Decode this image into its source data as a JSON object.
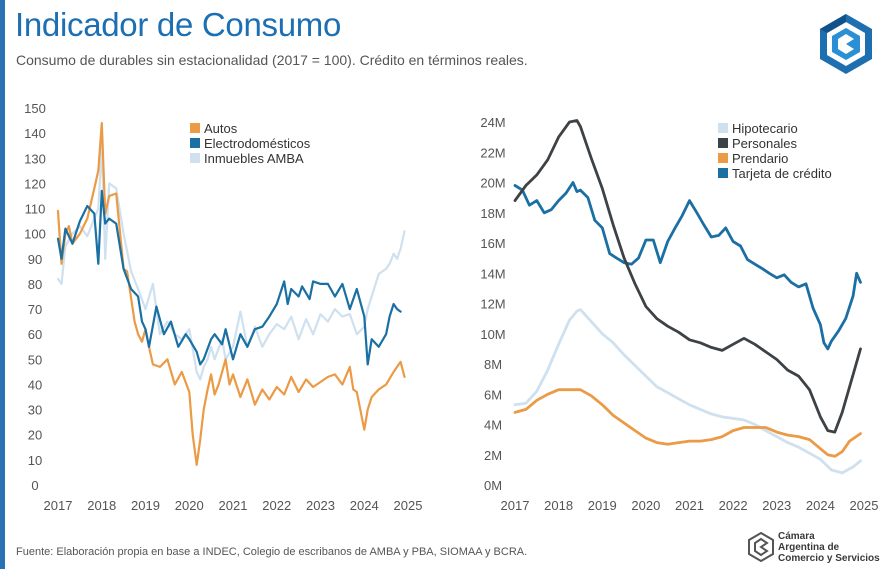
{
  "header": {
    "title": "Indicador de Consumo",
    "subtitle": "Consumo de durables sin estacionalidad (2017 = 100). Crédito en términos reales."
  },
  "footer": {
    "source": "Fuente: Elaboración propia en base a INDEC, Colegio de escribanos de AMBA y PBA, SIOMAA y BCRA.",
    "brand_lines": [
      "Cámara",
      "Argentina de",
      "Comercio y Servicios"
    ]
  },
  "colors": {
    "accent": "#1c6fb3",
    "autos": "#eb9a45",
    "electro": "#1a6fa3",
    "inmuebles": "#cfe0ef",
    "hipotecario": "#cfe0ef",
    "personales": "#3d4246",
    "prendario": "#eb9a45",
    "tarjeta": "#1a6fa3"
  },
  "chart_data": [
    {
      "type": "line",
      "title": "",
      "xlabel": "",
      "ylabel": "",
      "xlim": [
        2017,
        2025
      ],
      "ylim": [
        0,
        150
      ],
      "x_ticks": [
        "2017",
        "2018",
        "2019",
        "2020",
        "2021",
        "2022",
        "2023",
        "2024",
        "2025"
      ],
      "y_ticks": [
        "0",
        "10",
        "20",
        "30",
        "40",
        "50",
        "60",
        "70",
        "80",
        "90",
        "100",
        "110",
        "120",
        "130",
        "140",
        "150"
      ],
      "legend_position": "top-right",
      "series": [
        {
          "name": "Autos",
          "x": [
            2017.0,
            2017.08,
            2017.17,
            2017.25,
            2017.33,
            2017.5,
            2017.67,
            2017.83,
            2017.92,
            2018.0,
            2018.08,
            2018.17,
            2018.33,
            2018.5,
            2018.58,
            2018.75,
            2018.83,
            2018.92,
            2019.0,
            2019.08,
            2019.17,
            2019.33,
            2019.5,
            2019.67,
            2019.83,
            2020.0,
            2020.08,
            2020.17,
            2020.25,
            2020.33,
            2020.42,
            2020.5,
            2020.58,
            2020.67,
            2020.75,
            2020.83,
            2020.92,
            2021.0,
            2021.17,
            2021.33,
            2021.5,
            2021.67,
            2021.83,
            2022.0,
            2022.17,
            2022.33,
            2022.5,
            2022.67,
            2022.83,
            2023.0,
            2023.17,
            2023.33,
            2023.5,
            2023.67,
            2023.75,
            2023.83,
            2024.0,
            2024.08,
            2024.17,
            2024.33,
            2024.5,
            2024.67,
            2024.83,
            2024.92
          ],
          "values": [
            109,
            88,
            100,
            103,
            96,
            100,
            106,
            118,
            125,
            144,
            108,
            115,
            116,
            86,
            85,
            65,
            60,
            57,
            62,
            55,
            48,
            47,
            50,
            40,
            45,
            37,
            20,
            8,
            18,
            30,
            38,
            44,
            36,
            40,
            45,
            50,
            40,
            44,
            35,
            42,
            32,
            38,
            34,
            39,
            36,
            43,
            37,
            42,
            39,
            41,
            43,
            44,
            40,
            47,
            38,
            37,
            22,
            30,
            35,
            38,
            40,
            45,
            49,
            43
          ]
        },
        {
          "name": "Electrodomésticos",
          "x": [
            2017.0,
            2017.08,
            2017.17,
            2017.33,
            2017.5,
            2017.67,
            2017.83,
            2017.92,
            2018.0,
            2018.08,
            2018.17,
            2018.33,
            2018.5,
            2018.67,
            2018.83,
            2018.92,
            2019.0,
            2019.08,
            2019.25,
            2019.42,
            2019.58,
            2019.75,
            2019.92,
            2020.0,
            2020.17,
            2020.25,
            2020.33,
            2020.5,
            2020.58,
            2020.75,
            2020.83,
            2021.0,
            2021.17,
            2021.33,
            2021.5,
            2021.67,
            2021.83,
            2022.0,
            2022.17,
            2022.25,
            2022.33,
            2022.5,
            2022.58,
            2022.75,
            2022.83,
            2023.0,
            2023.17,
            2023.33,
            2023.5,
            2023.67,
            2023.83,
            2024.0,
            2024.08,
            2024.17,
            2024.33,
            2024.5,
            2024.58,
            2024.67,
            2024.75,
            2024.83
          ],
          "values": [
            98,
            90,
            102,
            96,
            105,
            111,
            108,
            88,
            117,
            104,
            106,
            104,
            86,
            78,
            75,
            65,
            62,
            55,
            71,
            60,
            65,
            55,
            60,
            58,
            53,
            48,
            50,
            58,
            60,
            56,
            62,
            50,
            60,
            55,
            62,
            63,
            67,
            72,
            81,
            72,
            78,
            75,
            79,
            74,
            81,
            80,
            80,
            75,
            80,
            70,
            78,
            67,
            48,
            58,
            55,
            60,
            67,
            72,
            70,
            69
          ]
        },
        {
          "name": "Inmuebles AMBA",
          "x": [
            2017.0,
            2017.08,
            2017.17,
            2017.33,
            2017.5,
            2017.67,
            2017.83,
            2017.92,
            2018.0,
            2018.08,
            2018.17,
            2018.33,
            2018.5,
            2018.67,
            2018.83,
            2019.0,
            2019.17,
            2019.33,
            2019.5,
            2019.67,
            2019.83,
            2020.0,
            2020.17,
            2020.25,
            2020.33,
            2020.42,
            2020.5,
            2020.58,
            2020.75,
            2020.83,
            2021.0,
            2021.17,
            2021.33,
            2021.5,
            2021.67,
            2021.83,
            2022.0,
            2022.17,
            2022.33,
            2022.5,
            2022.67,
            2022.83,
            2023.0,
            2023.17,
            2023.33,
            2023.5,
            2023.67,
            2023.83,
            2024.0,
            2024.08,
            2024.17,
            2024.33,
            2024.5,
            2024.58,
            2024.67,
            2024.75,
            2024.83,
            2024.92
          ],
          "values": [
            82,
            80,
            95,
            100,
            103,
            99,
            106,
            110,
            135,
            90,
            120,
            118,
            100,
            85,
            78,
            70,
            80,
            60,
            65,
            60,
            58,
            62,
            45,
            42,
            47,
            50,
            55,
            50,
            58,
            50,
            55,
            69,
            55,
            63,
            55,
            60,
            64,
            62,
            67,
            58,
            66,
            60,
            68,
            65,
            70,
            67,
            68,
            60,
            63,
            70,
            75,
            84,
            86,
            88,
            92,
            90,
            94,
            101
          ]
        }
      ]
    },
    {
      "type": "line",
      "title": "",
      "xlabel": "",
      "ylabel": "",
      "xlim": [
        2017,
        2025
      ],
      "ylim": [
        0,
        24
      ],
      "x_ticks": [
        "2017",
        "2018",
        "2019",
        "2020",
        "2021",
        "2022",
        "2023",
        "2024",
        "2025"
      ],
      "y_ticks": [
        "0M",
        "2M",
        "4M",
        "6M",
        "8M",
        "10M",
        "12M",
        "14M",
        "16M",
        "18M",
        "20M",
        "22M",
        "24M"
      ],
      "legend_position": "top-right",
      "series": [
        {
          "name": "Hipotecario",
          "x": [
            2017.0,
            2017.25,
            2017.5,
            2017.75,
            2018.0,
            2018.25,
            2018.42,
            2018.5,
            2018.75,
            2019.0,
            2019.25,
            2019.5,
            2019.75,
            2020.0,
            2020.25,
            2020.5,
            2020.75,
            2021.0,
            2021.25,
            2021.5,
            2021.75,
            2022.0,
            2022.25,
            2022.5,
            2022.75,
            2023.0,
            2023.25,
            2023.5,
            2023.75,
            2024.0,
            2024.25,
            2024.5,
            2024.75,
            2024.92
          ],
          "values": [
            5.3,
            5.4,
            6.2,
            7.6,
            9.3,
            10.9,
            11.5,
            11.6,
            10.8,
            10.0,
            9.4,
            8.6,
            7.9,
            7.2,
            6.5,
            6.1,
            5.7,
            5.3,
            5.0,
            4.7,
            4.5,
            4.4,
            4.3,
            4.0,
            3.6,
            3.2,
            2.8,
            2.5,
            2.1,
            1.7,
            1.0,
            0.8,
            1.2,
            1.6
          ]
        },
        {
          "name": "Personales",
          "x": [
            2017.0,
            2017.25,
            2017.5,
            2017.75,
            2018.0,
            2018.25,
            2018.42,
            2018.5,
            2018.75,
            2019.0,
            2019.25,
            2019.5,
            2019.75,
            2020.0,
            2020.25,
            2020.5,
            2020.75,
            2021.0,
            2021.25,
            2021.5,
            2021.75,
            2022.0,
            2022.25,
            2022.5,
            2022.75,
            2023.0,
            2023.25,
            2023.5,
            2023.75,
            2024.0,
            2024.17,
            2024.33,
            2024.5,
            2024.75,
            2024.92
          ],
          "values": [
            18.8,
            19.8,
            20.5,
            21.5,
            23.0,
            24.0,
            24.1,
            23.7,
            21.6,
            19.6,
            17.2,
            15.0,
            13.3,
            11.8,
            11.0,
            10.5,
            10.1,
            9.6,
            9.4,
            9.1,
            8.9,
            9.3,
            9.7,
            9.3,
            8.8,
            8.3,
            7.6,
            7.2,
            6.3,
            4.5,
            3.6,
            3.5,
            4.8,
            7.3,
            9.0
          ]
        },
        {
          "name": "Prendario",
          "x": [
            2017.0,
            2017.25,
            2017.5,
            2017.75,
            2018.0,
            2018.25,
            2018.5,
            2018.75,
            2019.0,
            2019.25,
            2019.5,
            2019.75,
            2020.0,
            2020.25,
            2020.5,
            2020.75,
            2021.0,
            2021.25,
            2021.5,
            2021.75,
            2022.0,
            2022.25,
            2022.5,
            2022.75,
            2023.0,
            2023.25,
            2023.5,
            2023.75,
            2024.0,
            2024.17,
            2024.33,
            2024.5,
            2024.67,
            2024.92
          ],
          "values": [
            4.8,
            5.0,
            5.6,
            6.0,
            6.3,
            6.3,
            6.3,
            5.9,
            5.3,
            4.6,
            4.1,
            3.6,
            3.1,
            2.8,
            2.7,
            2.8,
            2.9,
            2.9,
            3.0,
            3.2,
            3.6,
            3.8,
            3.8,
            3.8,
            3.5,
            3.3,
            3.2,
            3.0,
            2.4,
            2.0,
            1.9,
            2.2,
            2.9,
            3.4
          ]
        },
        {
          "name": "Tarjeta de crédito",
          "x": [
            2017.0,
            2017.17,
            2017.33,
            2017.5,
            2017.67,
            2017.83,
            2018.0,
            2018.17,
            2018.33,
            2018.42,
            2018.5,
            2018.67,
            2018.83,
            2019.0,
            2019.17,
            2019.33,
            2019.5,
            2019.67,
            2019.83,
            2020.0,
            2020.17,
            2020.33,
            2020.5,
            2020.67,
            2020.83,
            2021.0,
            2021.17,
            2021.33,
            2021.5,
            2021.67,
            2021.83,
            2022.0,
            2022.17,
            2022.33,
            2022.5,
            2022.67,
            2022.83,
            2023.0,
            2023.17,
            2023.33,
            2023.5,
            2023.67,
            2023.83,
            2024.0,
            2024.08,
            2024.17,
            2024.25,
            2024.42,
            2024.58,
            2024.75,
            2024.83,
            2024.92
          ],
          "values": [
            19.8,
            19.5,
            18.5,
            18.8,
            18.0,
            18.2,
            18.8,
            19.3,
            20.0,
            19.4,
            19.5,
            19.0,
            17.5,
            17.0,
            15.3,
            15.0,
            14.7,
            14.6,
            15.0,
            16.2,
            16.2,
            14.7,
            16.1,
            17.0,
            17.8,
            18.8,
            18.0,
            17.2,
            16.4,
            16.5,
            17.0,
            16.1,
            15.8,
            14.9,
            14.6,
            14.3,
            14.0,
            13.7,
            13.9,
            13.4,
            13.1,
            13.3,
            11.7,
            10.6,
            9.4,
            9.0,
            9.5,
            10.2,
            11.0,
            12.5,
            14.0,
            13.4
          ]
        }
      ]
    }
  ]
}
